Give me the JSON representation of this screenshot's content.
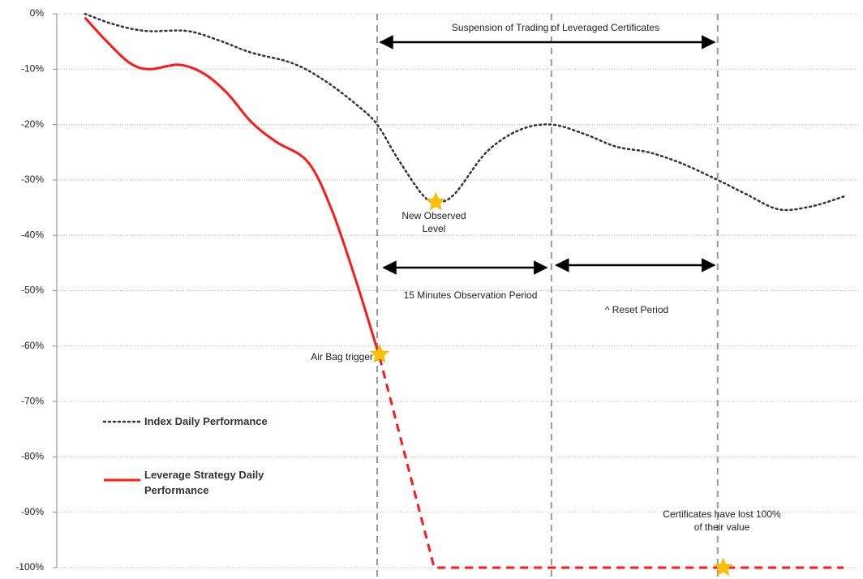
{
  "chart_data": {
    "type": "line",
    "xlim": [
      0,
      100
    ],
    "ylim": [
      -100,
      0
    ],
    "yticks": [
      {
        "value": 0,
        "label": "0%"
      },
      {
        "value": -10,
        "label": "-10%"
      },
      {
        "value": -20,
        "label": "-20%"
      },
      {
        "value": -30,
        "label": "-30%"
      },
      {
        "value": -40,
        "label": "-40%"
      },
      {
        "value": -50,
        "label": "-50%"
      },
      {
        "value": -60,
        "label": "-60%"
      },
      {
        "value": -70,
        "label": "-70%"
      },
      {
        "value": -80,
        "label": "-80%"
      },
      {
        "value": -90,
        "label": "-90%"
      },
      {
        "value": -100,
        "label": "-100%"
      }
    ],
    "grid": true,
    "series": [
      {
        "name": "Index Daily Performance",
        "color": "#333333",
        "line_style": "dotted",
        "x": [
          3.5,
          7.1,
          11.1,
          16.2,
          20.2,
          24.2,
          29.3,
          33.3,
          37.4,
          39.9,
          42.4,
          45.5,
          47.2,
          49.5,
          53.5,
          57.6,
          61.6,
          65.7,
          69.7,
          73.7,
          77.8,
          82.3,
          85.9,
          89.9,
          93.9,
          98
        ],
        "values": [
          0,
          -1.9,
          -3.1,
          -3.1,
          -4.8,
          -7,
          -8.9,
          -12,
          -16.5,
          -20,
          -26,
          -32.6,
          -34,
          -32.6,
          -25,
          -21,
          -20,
          -21.7,
          -24,
          -25,
          -27,
          -30,
          -32.6,
          -35.3,
          -34.8,
          -33
        ]
      },
      {
        "name": "Leverage Strategy Daily Performance",
        "color": "#ff1a1a",
        "line_style": "solid",
        "x": [
          3.5,
          6.1,
          9.1,
          11.6,
          15.2,
          18.2,
          21.2,
          24.2,
          27.3,
          31.3,
          34.3,
          37.4,
          40.2
        ],
        "values": [
          -0.7,
          -4.8,
          -8.9,
          -10,
          -9.2,
          -10.7,
          -14.3,
          -19.5,
          -23.1,
          -26.8,
          -35.6,
          -48.8,
          -62
        ]
      },
      {
        "color": "#ff1a1a",
        "line_style": "dashed",
        "x": [
          40.2,
          47,
          98
        ],
        "values": [
          -62,
          -100,
          -100
        ]
      }
    ],
    "vlines": [
      39.9,
      61.6,
      82.3
    ],
    "markers": [
      {
        "x": 40.2,
        "y": -61.5
      },
      {
        "x": 47.2,
        "y": -34
      },
      {
        "x": 83,
        "y": -100
      }
    ],
    "annotations": [
      "Suspension of  Trading of Leveraged Certificates",
      "New Observed Level",
      "15 Minutes Observation Period",
      "^ Reset Period",
      "Air Bag trigger",
      "Certificates have lost 100% of their value"
    ]
  }
}
